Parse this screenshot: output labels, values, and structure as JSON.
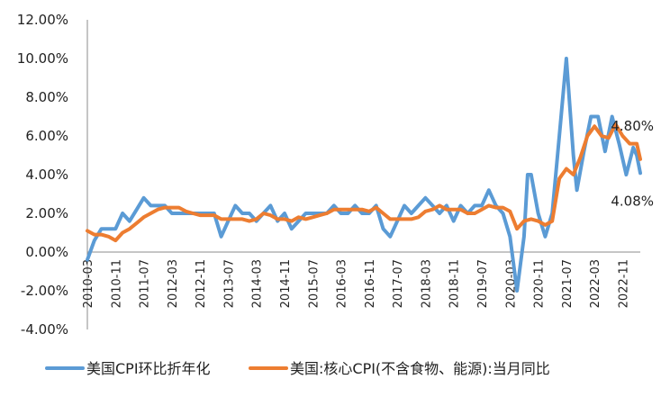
{
  "chart_data": {
    "type": "line",
    "ylim": [
      -4,
      12
    ],
    "y_ticks": [
      "-4.00%",
      "-2.00%",
      "0.00%",
      "2.00%",
      "4.00%",
      "6.00%",
      "8.00%",
      "10.00%",
      "12.00%"
    ],
    "y_tick_values": [
      -4,
      -2,
      0,
      2,
      4,
      6,
      8,
      10,
      12
    ],
    "x_start": "2010-03",
    "x_end": "2023-04",
    "x_ticks": [
      "2010-03",
      "2010-11",
      "2011-07",
      "2012-03",
      "2012-11",
      "2013-07",
      "2014-03",
      "2014-11",
      "2015-07",
      "2016-03",
      "2016-11",
      "2017-07",
      "2018-03",
      "2018-11",
      "2019-07",
      "2020-03",
      "2020-11",
      "2021-07",
      "2022-03",
      "2022-11"
    ],
    "grid": false,
    "legend_position": "bottom",
    "series": [
      {
        "name": "美国CPI环比折年化",
        "color": "#5B9BD5",
        "points": [
          [
            "2010-03",
            -0.4
          ],
          [
            "2010-05",
            0.6
          ],
          [
            "2010-07",
            1.2
          ],
          [
            "2010-09",
            1.2
          ],
          [
            "2010-11",
            1.2
          ],
          [
            "2011-01",
            2.0
          ],
          [
            "2011-03",
            1.6
          ],
          [
            "2011-05",
            2.2
          ],
          [
            "2011-07",
            2.8
          ],
          [
            "2011-09",
            2.4
          ],
          [
            "2011-11",
            2.4
          ],
          [
            "2012-01",
            2.4
          ],
          [
            "2012-03",
            2.0
          ],
          [
            "2012-05",
            2.0
          ],
          [
            "2012-07",
            2.0
          ],
          [
            "2012-09",
            2.0
          ],
          [
            "2012-11",
            2.0
          ],
          [
            "2013-01",
            2.0
          ],
          [
            "2013-03",
            2.0
          ],
          [
            "2013-05",
            0.8
          ],
          [
            "2013-07",
            1.6
          ],
          [
            "2013-09",
            2.4
          ],
          [
            "2013-11",
            2.0
          ],
          [
            "2014-01",
            2.0
          ],
          [
            "2014-03",
            1.6
          ],
          [
            "2014-05",
            2.0
          ],
          [
            "2014-07",
            2.4
          ],
          [
            "2014-09",
            1.6
          ],
          [
            "2014-11",
            2.0
          ],
          [
            "2015-01",
            1.2
          ],
          [
            "2015-03",
            1.6
          ],
          [
            "2015-05",
            2.0
          ],
          [
            "2015-07",
            2.0
          ],
          [
            "2015-09",
            2.0
          ],
          [
            "2015-11",
            2.0
          ],
          [
            "2016-01",
            2.4
          ],
          [
            "2016-03",
            2.0
          ],
          [
            "2016-05",
            2.0
          ],
          [
            "2016-07",
            2.4
          ],
          [
            "2016-09",
            2.0
          ],
          [
            "2016-11",
            2.0
          ],
          [
            "2017-01",
            2.4
          ],
          [
            "2017-03",
            1.2
          ],
          [
            "2017-05",
            0.8
          ],
          [
            "2017-07",
            1.6
          ],
          [
            "2017-09",
            2.4
          ],
          [
            "2017-11",
            2.0
          ],
          [
            "2018-01",
            2.4
          ],
          [
            "2018-03",
            2.8
          ],
          [
            "2018-05",
            2.4
          ],
          [
            "2018-07",
            2.0
          ],
          [
            "2018-09",
            2.4
          ],
          [
            "2018-11",
            1.6
          ],
          [
            "2019-01",
            2.4
          ],
          [
            "2019-03",
            2.0
          ],
          [
            "2019-05",
            2.4
          ],
          [
            "2019-07",
            2.4
          ],
          [
            "2019-09",
            3.2
          ],
          [
            "2019-11",
            2.4
          ],
          [
            "2020-01",
            2.0
          ],
          [
            "2020-03",
            0.8
          ],
          [
            "2020-05",
            -2.0
          ],
          [
            "2020-07",
            0.8
          ],
          [
            "2020-08",
            4.0
          ],
          [
            "2020-09",
            4.0
          ],
          [
            "2020-11",
            2.0
          ],
          [
            "2021-01",
            0.8
          ],
          [
            "2021-03",
            2.0
          ],
          [
            "2021-05",
            6.0
          ],
          [
            "2021-07",
            10.0
          ],
          [
            "2021-09",
            5.0
          ],
          [
            "2021-10",
            3.2
          ],
          [
            "2021-12",
            5.2
          ],
          [
            "2022-02",
            7.0
          ],
          [
            "2022-04",
            7.0
          ],
          [
            "2022-06",
            5.2
          ],
          [
            "2022-08",
            7.0
          ],
          [
            "2022-10",
            5.6
          ],
          [
            "2022-12",
            4.0
          ],
          [
            "2023-02",
            5.4
          ],
          [
            "2023-03",
            5.0
          ],
          [
            "2023-04",
            4.08
          ]
        ]
      },
      {
        "name": "美国:核心CPI(不含食物、能源):当月同比",
        "color": "#ED7D31",
        "points": [
          [
            "2010-03",
            1.1
          ],
          [
            "2010-05",
            0.9
          ],
          [
            "2010-07",
            0.9
          ],
          [
            "2010-09",
            0.8
          ],
          [
            "2010-11",
            0.6
          ],
          [
            "2011-01",
            1.0
          ],
          [
            "2011-03",
            1.2
          ],
          [
            "2011-05",
            1.5
          ],
          [
            "2011-07",
            1.8
          ],
          [
            "2011-09",
            2.0
          ],
          [
            "2011-11",
            2.2
          ],
          [
            "2012-01",
            2.3
          ],
          [
            "2012-03",
            2.3
          ],
          [
            "2012-05",
            2.3
          ],
          [
            "2012-07",
            2.1
          ],
          [
            "2012-09",
            2.0
          ],
          [
            "2012-11",
            1.9
          ],
          [
            "2013-01",
            1.9
          ],
          [
            "2013-03",
            1.9
          ],
          [
            "2013-05",
            1.7
          ],
          [
            "2013-07",
            1.7
          ],
          [
            "2013-09",
            1.7
          ],
          [
            "2013-11",
            1.7
          ],
          [
            "2014-01",
            1.6
          ],
          [
            "2014-03",
            1.7
          ],
          [
            "2014-05",
            2.0
          ],
          [
            "2014-07",
            1.9
          ],
          [
            "2014-09",
            1.7
          ],
          [
            "2014-11",
            1.7
          ],
          [
            "2015-01",
            1.6
          ],
          [
            "2015-03",
            1.8
          ],
          [
            "2015-05",
            1.7
          ],
          [
            "2015-07",
            1.8
          ],
          [
            "2015-09",
            1.9
          ],
          [
            "2015-11",
            2.0
          ],
          [
            "2016-01",
            2.2
          ],
          [
            "2016-03",
            2.2
          ],
          [
            "2016-05",
            2.2
          ],
          [
            "2016-07",
            2.2
          ],
          [
            "2016-09",
            2.2
          ],
          [
            "2016-11",
            2.1
          ],
          [
            "2017-01",
            2.3
          ],
          [
            "2017-03",
            2.0
          ],
          [
            "2017-05",
            1.7
          ],
          [
            "2017-07",
            1.7
          ],
          [
            "2017-09",
            1.7
          ],
          [
            "2017-11",
            1.7
          ],
          [
            "2018-01",
            1.8
          ],
          [
            "2018-03",
            2.1
          ],
          [
            "2018-05",
            2.2
          ],
          [
            "2018-07",
            2.4
          ],
          [
            "2018-09",
            2.2
          ],
          [
            "2018-11",
            2.2
          ],
          [
            "2019-01",
            2.2
          ],
          [
            "2019-03",
            2.0
          ],
          [
            "2019-05",
            2.0
          ],
          [
            "2019-07",
            2.2
          ],
          [
            "2019-09",
            2.4
          ],
          [
            "2019-11",
            2.3
          ],
          [
            "2020-01",
            2.3
          ],
          [
            "2020-03",
            2.1
          ],
          [
            "2020-05",
            1.2
          ],
          [
            "2020-07",
            1.6
          ],
          [
            "2020-09",
            1.7
          ],
          [
            "2020-11",
            1.6
          ],
          [
            "2021-01",
            1.4
          ],
          [
            "2021-03",
            1.6
          ],
          [
            "2021-05",
            3.8
          ],
          [
            "2021-07",
            4.3
          ],
          [
            "2021-09",
            4.0
          ],
          [
            "2021-11",
            4.9
          ],
          [
            "2022-01",
            6.0
          ],
          [
            "2022-03",
            6.5
          ],
          [
            "2022-05",
            6.0
          ],
          [
            "2022-07",
            5.9
          ],
          [
            "2022-09",
            6.6
          ],
          [
            "2022-11",
            6.0
          ],
          [
            "2023-01",
            5.6
          ],
          [
            "2023-03",
            5.6
          ],
          [
            "2023-04",
            4.8
          ]
        ]
      }
    ],
    "annotations": [
      {
        "text": "4.80%",
        "series": 1,
        "at": "2023-04",
        "value": 4.8
      },
      {
        "text": "4.08%",
        "series": 0,
        "at": "2023-04",
        "value": 4.08
      }
    ]
  }
}
